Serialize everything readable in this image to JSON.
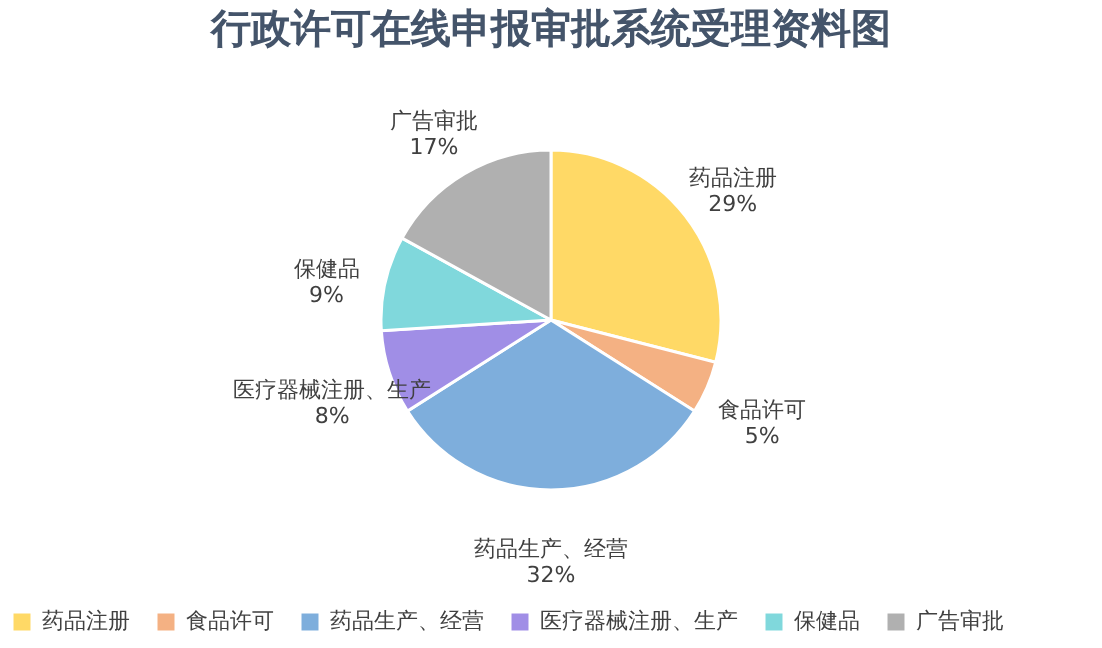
{
  "chart_data": {
    "type": "pie",
    "title": "行政许可在线申报审批系统受理资料图",
    "categories": [
      "药品注册",
      "食品许可",
      "药品生产、经营",
      "医疗器械注册、生产",
      "保健品",
      "广告审批"
    ],
    "values": [
      29,
      5,
      32,
      8,
      9,
      17
    ],
    "value_labels": [
      "29%",
      "5%",
      "32%",
      "8%",
      "9%",
      "17%"
    ],
    "colors": [
      "#ffd966",
      "#f4b183",
      "#7eaedc",
      "#a08ee6",
      "#80d8dc",
      "#b0b0b0"
    ],
    "legend": "bottom"
  }
}
